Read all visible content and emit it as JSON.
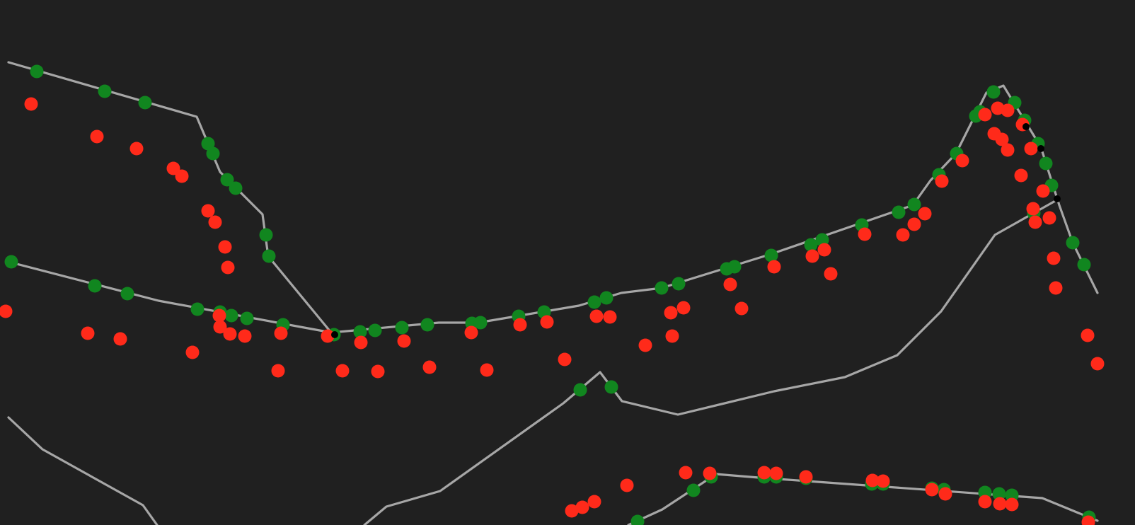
{
  "colors": {
    "background": "#202020",
    "track_line": "#a6a6a6",
    "point_green": "#11861f",
    "point_red": "#ff2a1a",
    "point_black": "#000000"
  },
  "diagram": {
    "kind": "polylines-with-point-markers",
    "point_classes": [
      "green",
      "red",
      "black"
    ],
    "text_labels": []
  }
}
